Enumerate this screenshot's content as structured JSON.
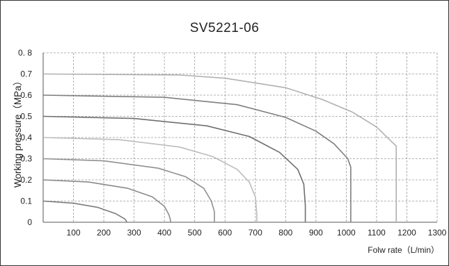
{
  "chart_data": {
    "type": "line",
    "title": "SV5221-06",
    "xlabel": "Folw rate（L/min）",
    "ylabel": "Working pressure（MPa）",
    "xlim": [
      0,
      1300
    ],
    "ylim": [
      0,
      0.8
    ],
    "x_ticks": [
      "100",
      "200",
      "300",
      "400",
      "500",
      "600",
      "700",
      "800",
      "900",
      "1000",
      "1100",
      "1200",
      "1300"
    ],
    "y_ticks": [
      "0",
      "0.1",
      "0.2",
      "0.3",
      "0.4",
      "0.5",
      "0.6",
      "0.7",
      "0. 8"
    ],
    "grid": true,
    "legend": "none",
    "series": [
      {
        "color": "#7a7a7a",
        "x": [
          0,
          100,
          180,
          240,
          270,
          275,
          275
        ],
        "y": [
          0.1,
          0.09,
          0.07,
          0.04,
          0.015,
          0.005,
          0
        ]
      },
      {
        "color": "#8a8a8a",
        "x": [
          0,
          150,
          280,
          360,
          400,
          415,
          420,
          420
        ],
        "y": [
          0.2,
          0.19,
          0.16,
          0.12,
          0.075,
          0.035,
          0.01,
          0
        ]
      },
      {
        "color": "#909090",
        "x": [
          0,
          200,
          380,
          470,
          530,
          555,
          565,
          565
        ],
        "y": [
          0.3,
          0.29,
          0.255,
          0.215,
          0.16,
          0.1,
          0.05,
          0
        ]
      },
      {
        "color": "#bcbcbc",
        "x": [
          0,
          250,
          450,
          560,
          640,
          680,
          700,
          705,
          705
        ],
        "y": [
          0.4,
          0.39,
          0.355,
          0.31,
          0.25,
          0.19,
          0.12,
          0.04,
          0
        ]
      },
      {
        "color": "#6e6e6e",
        "x": [
          0,
          300,
          540,
          680,
          780,
          840,
          860,
          865,
          865
        ],
        "y": [
          0.5,
          0.49,
          0.455,
          0.405,
          0.33,
          0.25,
          0.18,
          0.08,
          0
        ]
      },
      {
        "color": "#7e7e7e",
        "x": [
          0,
          400,
          640,
          800,
          900,
          960,
          1005,
          1015,
          1015
        ],
        "y": [
          0.6,
          0.59,
          0.555,
          0.495,
          0.43,
          0.37,
          0.3,
          0.26,
          0
        ]
      },
      {
        "color": "#b0b0b0",
        "x": [
          0,
          450,
          600,
          800,
          920,
          1020,
          1100,
          1150,
          1165,
          1165
        ],
        "y": [
          0.7,
          0.695,
          0.68,
          0.635,
          0.58,
          0.52,
          0.45,
          0.38,
          0.36,
          0
        ]
      }
    ]
  }
}
